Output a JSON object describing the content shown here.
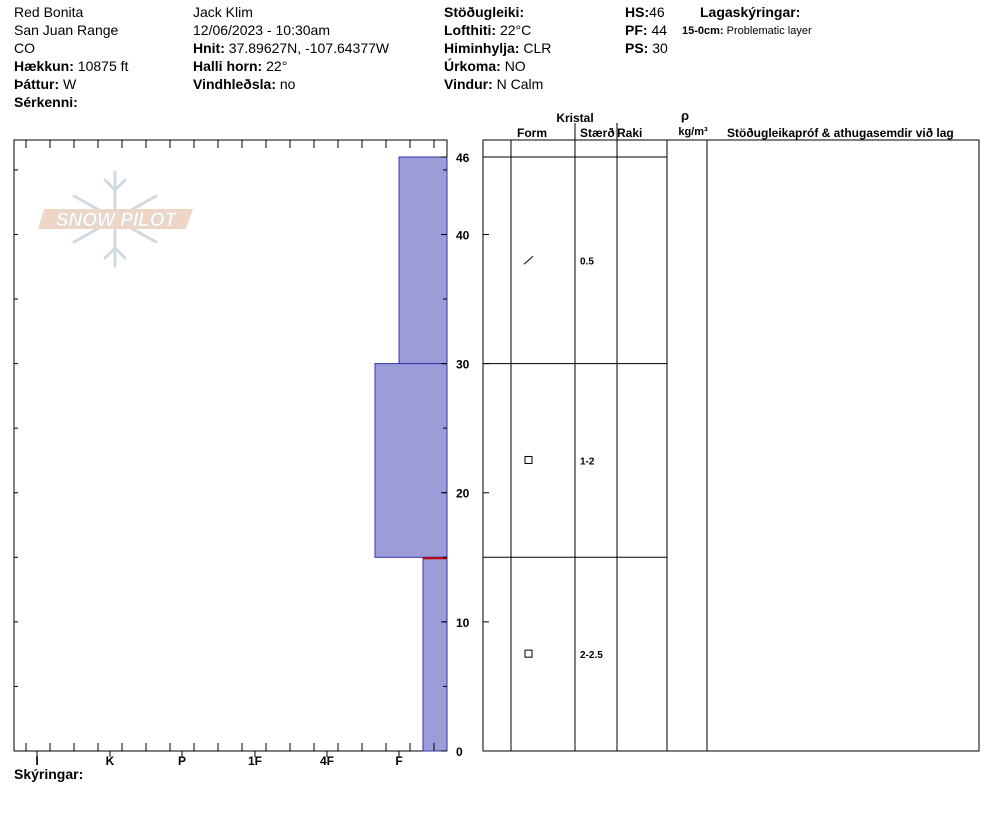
{
  "header": {
    "location": "Red Bonita",
    "range": "San Juan Range",
    "state": "CO",
    "elevation_label": "Hækkun:",
    "elevation_value": "10875 ft",
    "aspect_label": "Þáttur:",
    "aspect_value": "W",
    "features_label": "Sérkenni:",
    "observer": "Jack Klim",
    "datetime": "12/06/2023 - 10:30am",
    "coords_label": "Hnit:",
    "coords_value": "37.89627N, -107.64377W",
    "slope_label": "Halli horn:",
    "slope_value": "22°",
    "wind_loading_label": "Vindhleðsla:",
    "wind_loading_value": "no",
    "stability_label": "Stöðugleiki:",
    "air_temp_label": "Lofthiti:",
    "air_temp_value": "22°C",
    "sky_label": "Himinhylja:",
    "sky_value": "CLR",
    "precip_label": "Úrkoma:",
    "precip_value": "NO",
    "wind_label": "Vindur:",
    "wind_value": "N Calm",
    "hs_label": "HS:",
    "hs_value": "46",
    "pf_label": "PF:",
    "pf_value": "44",
    "ps_label": "PS:",
    "ps_value": "30",
    "layer_notes_label": "Lagaskýringar:",
    "layer_note_depth": "15-0cm:",
    "layer_note_text": "Problematic layer"
  },
  "table": {
    "crystal_header": "Kristal",
    "form_header": "Form",
    "size_header": "Stærð",
    "moisture_header": "Raki",
    "density_symbol": "ρ",
    "density_unit": "kg/m³",
    "comments_header": "Stöðugleikapróf & athugasemdir við lag"
  },
  "footer": {
    "notes_label": "Skýringar:"
  },
  "watermark": "SNOW PILOT",
  "colors": {
    "layer_fill": "#9c9cd8",
    "layer_stroke": "#3333aa",
    "problem_line": "#cc0000"
  },
  "chart_data": {
    "type": "bar",
    "title": "",
    "ylabel": "",
    "ylim": [
      0,
      46
    ],
    "yticks_labeled": [
      0,
      10,
      20,
      30,
      40,
      46
    ],
    "hardness_scale": [
      "I",
      "K",
      "P",
      "1F",
      "4F",
      "F"
    ],
    "layers": [
      {
        "top": 46,
        "bottom": 30,
        "hardness": "F",
        "grain_form": "precipitation-particles",
        "grain_size": "0.5"
      },
      {
        "top": 30,
        "bottom": 15,
        "hardness": "F+",
        "grain_form": "faceted-crystals",
        "grain_size": "1-2"
      },
      {
        "top": 15,
        "bottom": 0,
        "hardness": "F-",
        "grain_form": "faceted-crystals",
        "grain_size": "2-2.5"
      }
    ],
    "problem_layer_depth": 15
  }
}
